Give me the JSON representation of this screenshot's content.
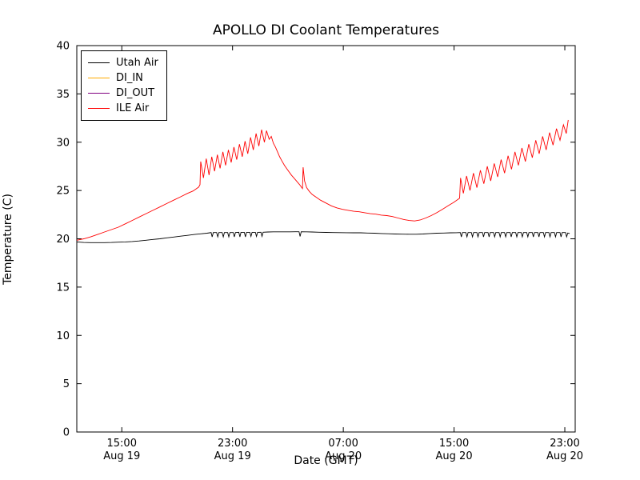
{
  "chart_data": {
    "type": "line",
    "title": "APOLLO DI Coolant Temperatures",
    "xlabel": "Date (GMT)",
    "ylabel": "Temperature (C)",
    "xlim": [
      0,
      36
    ],
    "ylim": [
      0,
      40
    ],
    "yticks": [
      0,
      5,
      10,
      15,
      20,
      25,
      30,
      35,
      40
    ],
    "xticks": [
      {
        "pos": 3.25,
        "time": "15:00",
        "date": "Aug 19"
      },
      {
        "pos": 11.25,
        "time": "23:00",
        "date": "Aug 19"
      },
      {
        "pos": 19.25,
        "time": "07:00",
        "date": "Aug 20"
      },
      {
        "pos": 27.25,
        "time": "15:00",
        "date": "Aug 20"
      },
      {
        "pos": 35.25,
        "time": "23:00",
        "date": "Aug 20"
      }
    ],
    "grid": false,
    "legend": {
      "position": "upper-left",
      "entries": [
        {
          "label": "Utah Air",
          "color": "#000000"
        },
        {
          "label": "DI_IN",
          "color": "#ffaa00"
        },
        {
          "label": "DI_OUT",
          "color": "#800080"
        },
        {
          "label": "ILE Air",
          "color": "#ff0000"
        }
      ]
    },
    "series": [
      {
        "name": "Utah Air",
        "color": "#000000",
        "points": [
          [
            0,
            19.68
          ],
          [
            0.5,
            19.62
          ],
          [
            1,
            19.6
          ],
          [
            1.5,
            19.6
          ],
          [
            2,
            19.6
          ],
          [
            2.5,
            19.62
          ],
          [
            3,
            19.65
          ],
          [
            3.5,
            19.68
          ],
          [
            4,
            19.72
          ],
          [
            4.5,
            19.78
          ],
          [
            5,
            19.85
          ],
          [
            5.5,
            19.93
          ],
          [
            6,
            20.0
          ],
          [
            6.5,
            20.1
          ],
          [
            7,
            20.18
          ],
          [
            7.5,
            20.27
          ],
          [
            8,
            20.36
          ],
          [
            8.5,
            20.45
          ],
          [
            9,
            20.52
          ],
          [
            9.4,
            20.58
          ],
          [
            9.6,
            20.62
          ],
          [
            9.7,
            20.65
          ],
          [
            9.78,
            20.2
          ],
          [
            9.86,
            20.65
          ],
          [
            10.1,
            20.65
          ],
          [
            10.18,
            20.2
          ],
          [
            10.26,
            20.65
          ],
          [
            10.5,
            20.65
          ],
          [
            10.58,
            20.2
          ],
          [
            10.66,
            20.65
          ],
          [
            10.9,
            20.65
          ],
          [
            10.98,
            20.2
          ],
          [
            11.06,
            20.65
          ],
          [
            11.3,
            20.65
          ],
          [
            11.38,
            20.2
          ],
          [
            11.46,
            20.65
          ],
          [
            11.7,
            20.67
          ],
          [
            11.78,
            20.2
          ],
          [
            11.86,
            20.67
          ],
          [
            12.1,
            20.67
          ],
          [
            12.18,
            20.2
          ],
          [
            12.26,
            20.67
          ],
          [
            12.5,
            20.67
          ],
          [
            12.58,
            20.25
          ],
          [
            12.66,
            20.67
          ],
          [
            12.9,
            20.67
          ],
          [
            12.98,
            20.25
          ],
          [
            13.06,
            20.67
          ],
          [
            13.3,
            20.68
          ],
          [
            13.38,
            20.25
          ],
          [
            13.46,
            20.68
          ],
          [
            13.8,
            20.7
          ],
          [
            14.2,
            20.72
          ],
          [
            14.6,
            20.72
          ],
          [
            15.0,
            20.72
          ],
          [
            15.4,
            20.72
          ],
          [
            15.8,
            20.73
          ],
          [
            16.05,
            20.73
          ],
          [
            16.13,
            20.25
          ],
          [
            16.21,
            20.73
          ],
          [
            16.6,
            20.72
          ],
          [
            17,
            20.7
          ],
          [
            17.5,
            20.68
          ],
          [
            18,
            20.66
          ],
          [
            18.5,
            20.65
          ],
          [
            19,
            20.64
          ],
          [
            19.5,
            20.63
          ],
          [
            20,
            20.62
          ],
          [
            20.5,
            20.62
          ],
          [
            21,
            20.6
          ],
          [
            21.5,
            20.58
          ],
          [
            22,
            20.55
          ],
          [
            22.5,
            20.52
          ],
          [
            23,
            20.5
          ],
          [
            23.5,
            20.48
          ],
          [
            24,
            20.47
          ],
          [
            24.5,
            20.47
          ],
          [
            25,
            20.5
          ],
          [
            25.5,
            20.55
          ],
          [
            26,
            20.58
          ],
          [
            26.5,
            20.6
          ],
          [
            27,
            20.62
          ],
          [
            27.4,
            20.63
          ],
          [
            27.7,
            20.65
          ],
          [
            27.78,
            20.2
          ],
          [
            27.86,
            20.65
          ],
          [
            28.1,
            20.65
          ],
          [
            28.18,
            20.2
          ],
          [
            28.26,
            20.65
          ],
          [
            28.5,
            20.65
          ],
          [
            28.58,
            20.2
          ],
          [
            28.66,
            20.65
          ],
          [
            28.9,
            20.65
          ],
          [
            28.98,
            20.2
          ],
          [
            29.06,
            20.65
          ],
          [
            29.3,
            20.65
          ],
          [
            29.38,
            20.2
          ],
          [
            29.46,
            20.65
          ],
          [
            29.7,
            20.65
          ],
          [
            29.78,
            20.2
          ],
          [
            29.86,
            20.65
          ],
          [
            30.1,
            20.65
          ],
          [
            30.18,
            20.2
          ],
          [
            30.26,
            20.65
          ],
          [
            30.5,
            20.65
          ],
          [
            30.58,
            20.2
          ],
          [
            30.66,
            20.65
          ],
          [
            30.9,
            20.65
          ],
          [
            30.98,
            20.2
          ],
          [
            31.06,
            20.65
          ],
          [
            31.3,
            20.65
          ],
          [
            31.38,
            20.2
          ],
          [
            31.46,
            20.65
          ],
          [
            31.7,
            20.65
          ],
          [
            31.78,
            20.2
          ],
          [
            31.86,
            20.65
          ],
          [
            32.1,
            20.65
          ],
          [
            32.18,
            20.2
          ],
          [
            32.26,
            20.65
          ],
          [
            32.5,
            20.65
          ],
          [
            32.58,
            20.2
          ],
          [
            32.66,
            20.65
          ],
          [
            32.9,
            20.65
          ],
          [
            32.98,
            20.2
          ],
          [
            33.06,
            20.65
          ],
          [
            33.3,
            20.65
          ],
          [
            33.38,
            20.2
          ],
          [
            33.46,
            20.65
          ],
          [
            33.7,
            20.65
          ],
          [
            33.78,
            20.2
          ],
          [
            33.86,
            20.65
          ],
          [
            34.1,
            20.65
          ],
          [
            34.18,
            20.2
          ],
          [
            34.26,
            20.65
          ],
          [
            34.5,
            20.65
          ],
          [
            34.58,
            20.2
          ],
          [
            34.66,
            20.65
          ],
          [
            34.9,
            20.65
          ],
          [
            34.98,
            20.2
          ],
          [
            35.06,
            20.65
          ],
          [
            35.3,
            20.65
          ],
          [
            35.38,
            20.2
          ],
          [
            35.46,
            20.6
          ],
          [
            35.6,
            20.55
          ]
        ]
      },
      {
        "name": "DI_IN",
        "color": "#ffaa00",
        "points": []
      },
      {
        "name": "DI_OUT",
        "color": "#800080",
        "points": []
      },
      {
        "name": "ILE Air",
        "color": "#ff0000",
        "points": [
          [
            0,
            19.85
          ],
          [
            0.5,
            20.0
          ],
          [
            1,
            20.2
          ],
          [
            1.5,
            20.45
          ],
          [
            2,
            20.7
          ],
          [
            2.5,
            20.95
          ],
          [
            3,
            21.2
          ],
          [
            3.5,
            21.55
          ],
          [
            4,
            21.9
          ],
          [
            4.5,
            22.25
          ],
          [
            5,
            22.6
          ],
          [
            5.5,
            22.95
          ],
          [
            6,
            23.3
          ],
          [
            6.5,
            23.65
          ],
          [
            7,
            24.0
          ],
          [
            7.5,
            24.35
          ],
          [
            8,
            24.7
          ],
          [
            8.4,
            24.95
          ],
          [
            8.8,
            25.35
          ],
          [
            8.9,
            25.6
          ],
          [
            8.95,
            28.0
          ],
          [
            9.15,
            26.3
          ],
          [
            9.35,
            28.3
          ],
          [
            9.55,
            26.6
          ],
          [
            9.75,
            28.5
          ],
          [
            9.95,
            27.0
          ],
          [
            10.15,
            28.7
          ],
          [
            10.35,
            27.3
          ],
          [
            10.55,
            29.0
          ],
          [
            10.75,
            27.6
          ],
          [
            10.95,
            29.2
          ],
          [
            11.15,
            27.9
          ],
          [
            11.35,
            29.5
          ],
          [
            11.55,
            28.2
          ],
          [
            11.75,
            29.8
          ],
          [
            11.95,
            28.5
          ],
          [
            12.15,
            30.1
          ],
          [
            12.35,
            28.8
          ],
          [
            12.55,
            30.5
          ],
          [
            12.75,
            29.2
          ],
          [
            12.95,
            30.9
          ],
          [
            13.15,
            29.6
          ],
          [
            13.35,
            31.3
          ],
          [
            13.55,
            30.0
          ],
          [
            13.7,
            31.2
          ],
          [
            13.9,
            30.3
          ],
          [
            14.05,
            30.6
          ],
          [
            14.2,
            29.9
          ],
          [
            14.35,
            29.5
          ],
          [
            14.5,
            29.0
          ],
          [
            14.65,
            28.5
          ],
          [
            14.8,
            28.1
          ],
          [
            15.0,
            27.6
          ],
          [
            15.2,
            27.2
          ],
          [
            15.5,
            26.6
          ],
          [
            15.8,
            26.1
          ],
          [
            16.1,
            25.6
          ],
          [
            16.25,
            25.3
          ],
          [
            16.3,
            25.2
          ],
          [
            16.35,
            27.4
          ],
          [
            16.45,
            26.0
          ],
          [
            16.6,
            25.3
          ],
          [
            16.8,
            24.9
          ],
          [
            17.0,
            24.6
          ],
          [
            17.3,
            24.3
          ],
          [
            17.6,
            24.0
          ],
          [
            18.0,
            23.7
          ],
          [
            18.4,
            23.4
          ],
          [
            18.8,
            23.2
          ],
          [
            19.2,
            23.05
          ],
          [
            19.6,
            22.95
          ],
          [
            20.0,
            22.85
          ],
          [
            20.4,
            22.8
          ],
          [
            20.8,
            22.7
          ],
          [
            21.2,
            22.6
          ],
          [
            21.6,
            22.55
          ],
          [
            22.0,
            22.45
          ],
          [
            22.4,
            22.4
          ],
          [
            22.8,
            22.3
          ],
          [
            23.2,
            22.15
          ],
          [
            23.6,
            22.0
          ],
          [
            24.0,
            21.9
          ],
          [
            24.4,
            21.85
          ],
          [
            24.8,
            21.95
          ],
          [
            25.2,
            22.15
          ],
          [
            25.6,
            22.4
          ],
          [
            26.0,
            22.7
          ],
          [
            26.4,
            23.05
          ],
          [
            26.8,
            23.4
          ],
          [
            27.2,
            23.75
          ],
          [
            27.5,
            24.05
          ],
          [
            27.65,
            24.2
          ],
          [
            27.72,
            26.3
          ],
          [
            27.92,
            24.7
          ],
          [
            28.15,
            26.5
          ],
          [
            28.4,
            25.0
          ],
          [
            28.65,
            26.8
          ],
          [
            28.9,
            25.3
          ],
          [
            29.15,
            27.1
          ],
          [
            29.4,
            25.7
          ],
          [
            29.65,
            27.5
          ],
          [
            29.9,
            26.0
          ],
          [
            30.15,
            27.8
          ],
          [
            30.4,
            26.4
          ],
          [
            30.65,
            28.2
          ],
          [
            30.9,
            26.8
          ],
          [
            31.15,
            28.6
          ],
          [
            31.4,
            27.2
          ],
          [
            31.65,
            29.0
          ],
          [
            31.9,
            27.6
          ],
          [
            32.15,
            29.4
          ],
          [
            32.4,
            28.0
          ],
          [
            32.65,
            29.8
          ],
          [
            32.9,
            28.4
          ],
          [
            33.15,
            30.2
          ],
          [
            33.4,
            28.8
          ],
          [
            33.65,
            30.6
          ],
          [
            33.9,
            29.2
          ],
          [
            34.15,
            31.0
          ],
          [
            34.4,
            29.7
          ],
          [
            34.65,
            31.4
          ],
          [
            34.9,
            30.2
          ],
          [
            35.15,
            31.8
          ],
          [
            35.35,
            30.9
          ],
          [
            35.5,
            32.3
          ]
        ]
      }
    ],
    "colors": {
      "background": "#ffffff",
      "axes": "#000000"
    }
  }
}
